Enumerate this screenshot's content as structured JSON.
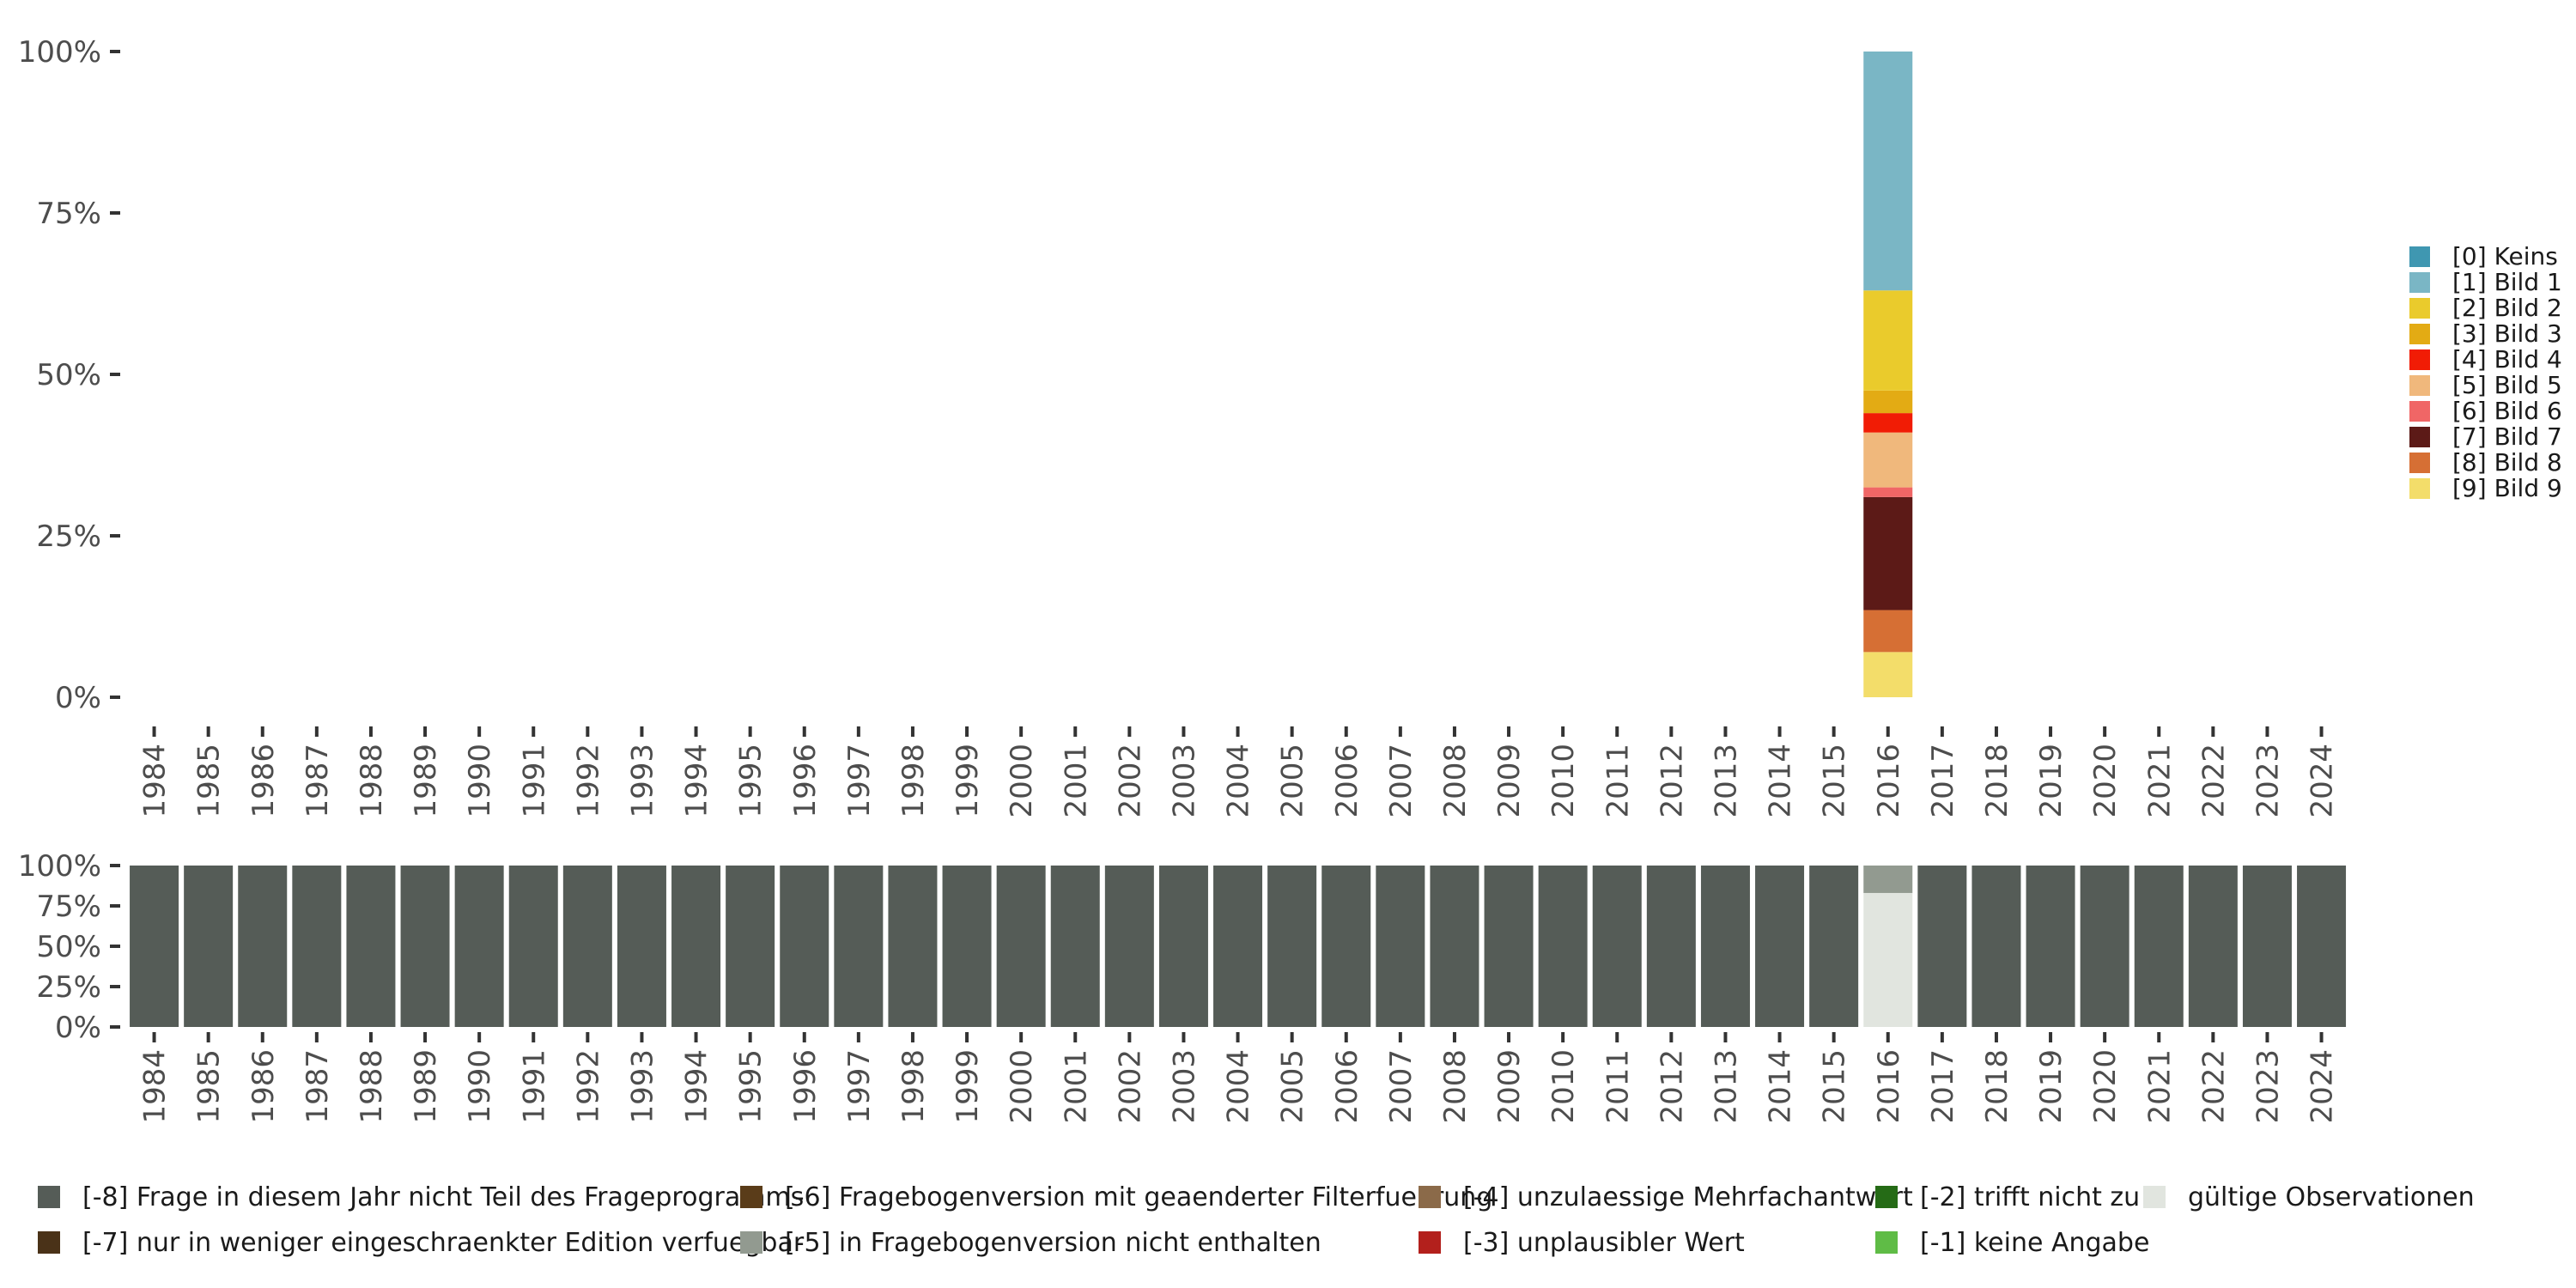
{
  "chart_data": [
    {
      "type": "bar",
      "stacked": true,
      "ylim": [
        0,
        100
      ],
      "yticks": [
        "0%",
        "25%",
        "50%",
        "75%",
        "100%"
      ],
      "categories": [
        "1984",
        "1985",
        "1986",
        "1987",
        "1988",
        "1989",
        "1990",
        "1991",
        "1992",
        "1993",
        "1994",
        "1995",
        "1996",
        "1997",
        "1998",
        "1999",
        "2000",
        "2001",
        "2002",
        "2003",
        "2004",
        "2005",
        "2006",
        "2007",
        "2008",
        "2009",
        "2010",
        "2011",
        "2012",
        "2013",
        "2014",
        "2015",
        "2016",
        "2017",
        "2018",
        "2019",
        "2020",
        "2021",
        "2022",
        "2023",
        "2024"
      ],
      "legend": {
        "position": "right"
      },
      "series": [
        {
          "name": "[0] Keins",
          "color": "#3f97b1",
          "values": {
            "2016": 0
          }
        },
        {
          "name": "[1] Bild 1",
          "color": "#7ab6c5",
          "values": {
            "2016": 37
          }
        },
        {
          "name": "[2] Bild 2",
          "color": "#eacb2c",
          "values": {
            "2016": 15.5
          }
        },
        {
          "name": "[3] Bild 3",
          "color": "#e3ab14",
          "values": {
            "2016": 3.5
          }
        },
        {
          "name": "[4] Bild 4",
          "color": "#f11c05",
          "values": {
            "2016": 3
          }
        },
        {
          "name": "[5] Bild 5",
          "color": "#f0b87c",
          "values": {
            "2016": 8.5
          }
        },
        {
          "name": "[6] Bild 6",
          "color": "#f06666",
          "values": {
            "2016": 1.5
          }
        },
        {
          "name": "[7] Bild 7",
          "color": "#5c1a17",
          "values": {
            "2016": 17.5
          }
        },
        {
          "name": "[8] Bild 8",
          "color": "#d66f34",
          "values": {
            "2016": 6.5
          }
        },
        {
          "name": "[9] Bild 9",
          "color": "#f3dd6a",
          "values": {
            "2016": 7
          }
        }
      ]
    },
    {
      "type": "bar",
      "stacked": true,
      "ylim": [
        0,
        100
      ],
      "yticks": [
        "0%",
        "25%",
        "50%",
        "75%",
        "100%"
      ],
      "categories": [
        "1984",
        "1985",
        "1986",
        "1987",
        "1988",
        "1989",
        "1990",
        "1991",
        "1992",
        "1993",
        "1994",
        "1995",
        "1996",
        "1997",
        "1998",
        "1999",
        "2000",
        "2001",
        "2002",
        "2003",
        "2004",
        "2005",
        "2006",
        "2007",
        "2008",
        "2009",
        "2010",
        "2011",
        "2012",
        "2013",
        "2014",
        "2015",
        "2016",
        "2017",
        "2018",
        "2019",
        "2020",
        "2021",
        "2022",
        "2023",
        "2024"
      ],
      "legend": {
        "position": "bottom",
        "rows": 2
      },
      "series": [
        {
          "name": "[-8] Frage in diesem Jahr nicht Teil des Frageprogramms",
          "color": "#555c57",
          "default": 100,
          "values": {
            "2016": 0
          }
        },
        {
          "name": "[-7] nur in weniger eingeschraenkter Edition verfuegbar",
          "color": "#4a3218",
          "default": 0,
          "values": {}
        },
        {
          "name": "[-6] Fragebogenversion mit geaenderter Filterfuehrung",
          "color": "#5a3c19",
          "default": 0,
          "values": {}
        },
        {
          "name": "[-5] in Fragebogenversion nicht enthalten",
          "color": "#929a90",
          "default": 0,
          "values": {
            "2016": 17
          }
        },
        {
          "name": "[-4] unzulaessige Mehrfachantwort",
          "color": "#8b6a49",
          "default": 0,
          "values": {}
        },
        {
          "name": "[-3] unplausibler Wert",
          "color": "#b3201c",
          "default": 0,
          "values": {}
        },
        {
          "name": "[-2] trifft nicht zu",
          "color": "#256b16",
          "default": 0,
          "values": {}
        },
        {
          "name": "[-1] keine Angabe",
          "color": "#5fbc46",
          "default": 0,
          "values": {}
        },
        {
          "name": "gültige Observationen",
          "color": "#e1e5df",
          "default": 0,
          "values": {
            "2016": 83
          }
        }
      ]
    }
  ]
}
